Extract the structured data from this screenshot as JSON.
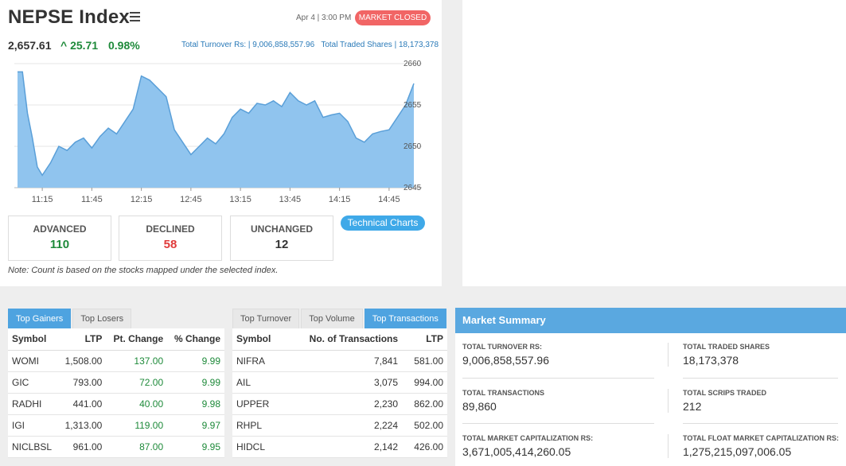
{
  "index": {
    "title": "NEPSE Index",
    "datetime": "Apr 4 | 3:00 PM",
    "status": "MARKET CLOSED",
    "value": "2,657.61",
    "change": "^ 25.71",
    "percent": "0.98%",
    "turnover_text": "Total Turnover Rs: | 9,006,858,557.96",
    "shares_text": "Total Traded Shares | 18,173,378"
  },
  "chart_data": {
    "type": "area",
    "title": "",
    "xlabel": "",
    "ylabel": "",
    "ylim": [
      2645,
      2660
    ],
    "y_ticks": [
      "2660",
      "2655",
      "2650",
      "2645"
    ],
    "x_ticks": [
      "11:15",
      "11:45",
      "12:15",
      "12:45",
      "13:15",
      "13:45",
      "14:15",
      "14:45"
    ],
    "x": [
      "11:00",
      "11:03",
      "11:06",
      "11:09",
      "11:12",
      "11:15",
      "11:20",
      "11:25",
      "11:30",
      "11:35",
      "11:40",
      "11:45",
      "11:50",
      "11:55",
      "12:00",
      "12:05",
      "12:10",
      "12:15",
      "12:20",
      "12:25",
      "12:30",
      "12:35",
      "12:40",
      "12:45",
      "12:50",
      "12:55",
      "13:00",
      "13:05",
      "13:10",
      "13:15",
      "13:20",
      "13:25",
      "13:30",
      "13:35",
      "13:40",
      "13:45",
      "13:50",
      "13:55",
      "14:00",
      "14:05",
      "14:10",
      "14:15",
      "14:20",
      "14:25",
      "14:30",
      "14:35",
      "14:40",
      "14:45",
      "14:50",
      "14:55",
      "15:00"
    ],
    "values": [
      2659.0,
      2659.0,
      2654.0,
      2651.0,
      2647.5,
      2646.5,
      2648.0,
      2650.0,
      2649.5,
      2650.5,
      2651.0,
      2649.8,
      2651.2,
      2652.2,
      2651.5,
      2653.0,
      2654.5,
      2658.5,
      2658.0,
      2657.0,
      2656.0,
      2652.0,
      2650.5,
      2649.0,
      2650.0,
      2651.0,
      2650.3,
      2651.5,
      2653.5,
      2654.5,
      2654.0,
      2655.2,
      2655.0,
      2655.5,
      2654.8,
      2656.5,
      2655.5,
      2655.0,
      2655.5,
      2653.5,
      2653.8,
      2654.0,
      2653.0,
      2651.0,
      2650.5,
      2651.5,
      2651.8,
      2652.0,
      2653.5,
      2655.0,
      2657.6
    ],
    "colors": {
      "fill": "#90c4ee",
      "line": "#5a9fd8"
    }
  },
  "breadth": {
    "advanced_label": "ADVANCED",
    "advanced_value": "110",
    "declined_label": "DECLINED",
    "declined_value": "58",
    "unchanged_label": "UNCHANGED",
    "unchanged_value": "12",
    "tech_charts": "Technical Charts",
    "note": "Note: Count is based on the stocks mapped under the selected index."
  },
  "gainers": {
    "tabs": [
      "Top Gainers",
      "Top Losers"
    ],
    "headers": [
      "Symbol",
      "LTP",
      "Pt. Change",
      "% Change"
    ],
    "rows": [
      [
        "WOMI",
        "1,508.00",
        "137.00",
        "9.99"
      ],
      [
        "GIC",
        "793.00",
        "72.00",
        "9.99"
      ],
      [
        "RADHI",
        "441.00",
        "40.00",
        "9.98"
      ],
      [
        "IGI",
        "1,313.00",
        "119.00",
        "9.97"
      ],
      [
        "NICLBSL",
        "961.00",
        "87.00",
        "9.95"
      ]
    ]
  },
  "transactions": {
    "tabs": [
      "Top Turnover",
      "Top Volume",
      "Top Transactions"
    ],
    "headers": [
      "Symbol",
      "No. of Transactions",
      "LTP"
    ],
    "rows": [
      [
        "NIFRA",
        "7,841",
        "581.00"
      ],
      [
        "AIL",
        "3,075",
        "994.00"
      ],
      [
        "UPPER",
        "2,230",
        "862.00"
      ],
      [
        "RHPL",
        "2,224",
        "502.00"
      ],
      [
        "HIDCL",
        "2,142",
        "426.00"
      ]
    ]
  },
  "summary": {
    "title": "Market Summary",
    "turnover_label": "TOTAL TURNOVER RS:",
    "turnover_value": "9,006,858,557.96",
    "shares_label": "TOTAL TRADED SHARES",
    "shares_value": "18,173,378",
    "transactions_label": "TOTAL TRANSACTIONS",
    "transactions_value": "89,860",
    "scrips_label": "TOTAL SCRIPS TRADED",
    "scrips_value": "212",
    "mcap_label": "TOTAL MARKET CAPITALIZATION RS:",
    "mcap_value": "3,671,005,414,260.05",
    "fcap_label": "TOTAL FLOAT MARKET CAPITALIZATION RS:",
    "fcap_value": "1,275,215,097,006.05"
  }
}
